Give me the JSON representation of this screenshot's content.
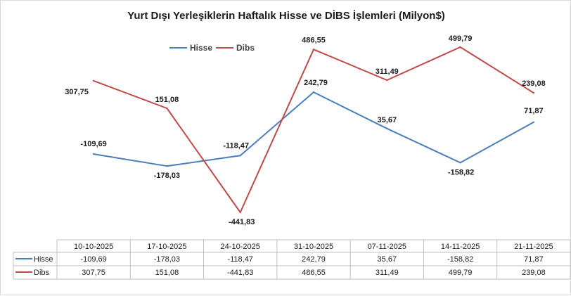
{
  "chart_data": {
    "type": "line",
    "title": "Yurt Dışı Yerleşiklerin Haftalık Hisse ve DİBS İşlemleri (Milyon$)",
    "categories": [
      "10-10-2025",
      "17-10-2025",
      "24-10-2025",
      "31-10-2025",
      "07-11-2025",
      "14-11-2025",
      "21-11-2025"
    ],
    "series": [
      {
        "name": "Hisse",
        "color": "#4a7ebb",
        "values": [
          -109.69,
          -178.03,
          -118.47,
          242.79,
          35.67,
          -158.82,
          71.87
        ],
        "labels": [
          "-109,69",
          "-178,03",
          "-118,47",
          "242,79",
          "35,67",
          "-158,82",
          "71,87"
        ]
      },
      {
        "name": "Dibs",
        "color": "#be4b48",
        "values": [
          307.75,
          151.08,
          -441.83,
          486.55,
          311.49,
          499.79,
          239.08
        ],
        "labels": [
          "307,75",
          "151,08",
          "-441,83",
          "486,55",
          "311,49",
          "499,79",
          "239,08"
        ]
      }
    ],
    "legend_position": "top-left",
    "data_table": true,
    "grid": false
  }
}
